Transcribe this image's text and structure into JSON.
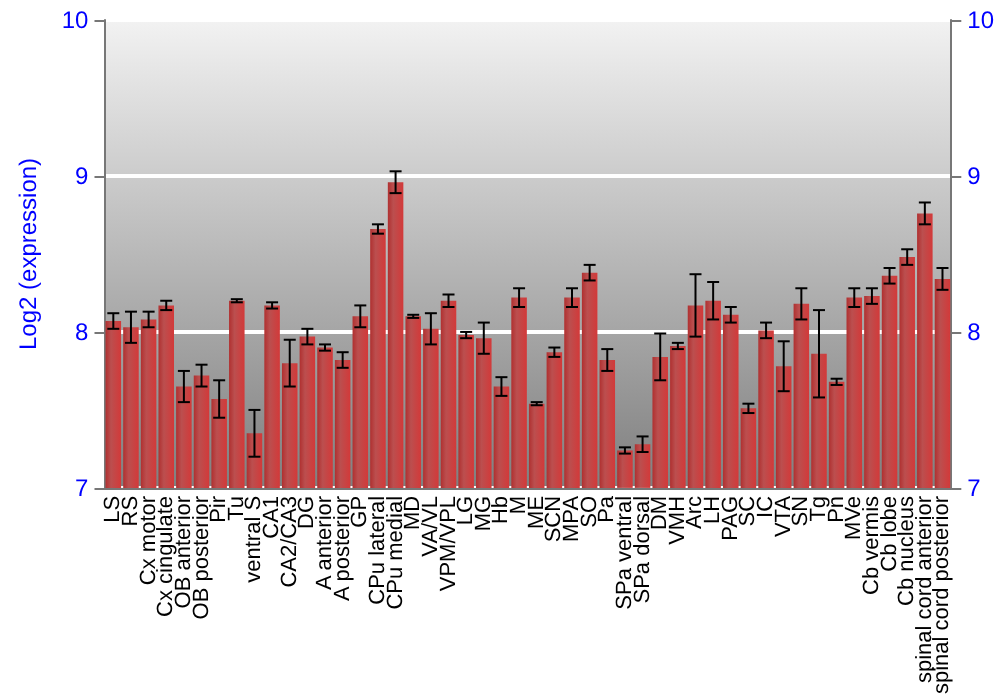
{
  "chart_data": {
    "type": "bar",
    "ylabel": "Log2 (expression)",
    "categories": [
      "LS",
      "RS",
      "Cx motor",
      "Cx cingulate",
      "OB anterior",
      "OB posterior",
      "Pir",
      "Tu",
      "ventral S",
      "CA1",
      "CA2/CA3",
      "DG",
      "A anterior",
      "A posterior",
      "GP",
      "CPu lateral",
      "CPu medial",
      "MD",
      "VA/VL",
      "VPM/VPL",
      "LG",
      "MG",
      "Hb",
      "M",
      "ME",
      "SCN",
      "MPA",
      "SO",
      "Pa",
      "SPa ventral",
      "SPa dorsal",
      "DM",
      "VMH",
      "Arc",
      "LH",
      "PAG",
      "SC",
      "IC",
      "VTA",
      "SN",
      "Tg",
      "Pn",
      "MVe",
      "Cb vermis",
      "Cb lobe",
      "Cb nucleus",
      "spinal cord anterior",
      "spinal cord posterior"
    ],
    "values": [
      8.07,
      8.03,
      8.08,
      8.17,
      7.65,
      7.72,
      7.57,
      8.2,
      7.35,
      8.17,
      7.8,
      7.97,
      7.9,
      7.82,
      8.1,
      8.66,
      8.96,
      8.1,
      8.02,
      8.2,
      7.98,
      7.96,
      7.65,
      8.22,
      7.54,
      7.87,
      8.22,
      8.38,
      7.82,
      7.24,
      7.28,
      7.84,
      7.91,
      8.17,
      8.2,
      8.11,
      7.51,
      8.01,
      7.78,
      8.18,
      7.86,
      7.68,
      8.22,
      8.23,
      8.36,
      8.48,
      8.76,
      8.34
    ],
    "errors": [
      0.05,
      0.1,
      0.05,
      0.03,
      0.1,
      0.07,
      0.12,
      0.01,
      0.15,
      0.02,
      0.15,
      0.05,
      0.02,
      0.05,
      0.07,
      0.03,
      0.07,
      0.01,
      0.1,
      0.04,
      0.02,
      0.1,
      0.06,
      0.06,
      0.01,
      0.03,
      0.06,
      0.05,
      0.07,
      0.02,
      0.05,
      0.15,
      0.02,
      0.2,
      0.12,
      0.05,
      0.03,
      0.05,
      0.16,
      0.1,
      0.28,
      0.02,
      0.06,
      0.05,
      0.05,
      0.05,
      0.07,
      0.07
    ],
    "color": "#b03030",
    "ylim": [
      7,
      10
    ],
    "yticks": [
      7,
      8,
      9,
      10
    ],
    "y2lim": [
      7,
      10
    ],
    "y2ticks": [
      7,
      8,
      9,
      10
    ],
    "grid": "y"
  }
}
